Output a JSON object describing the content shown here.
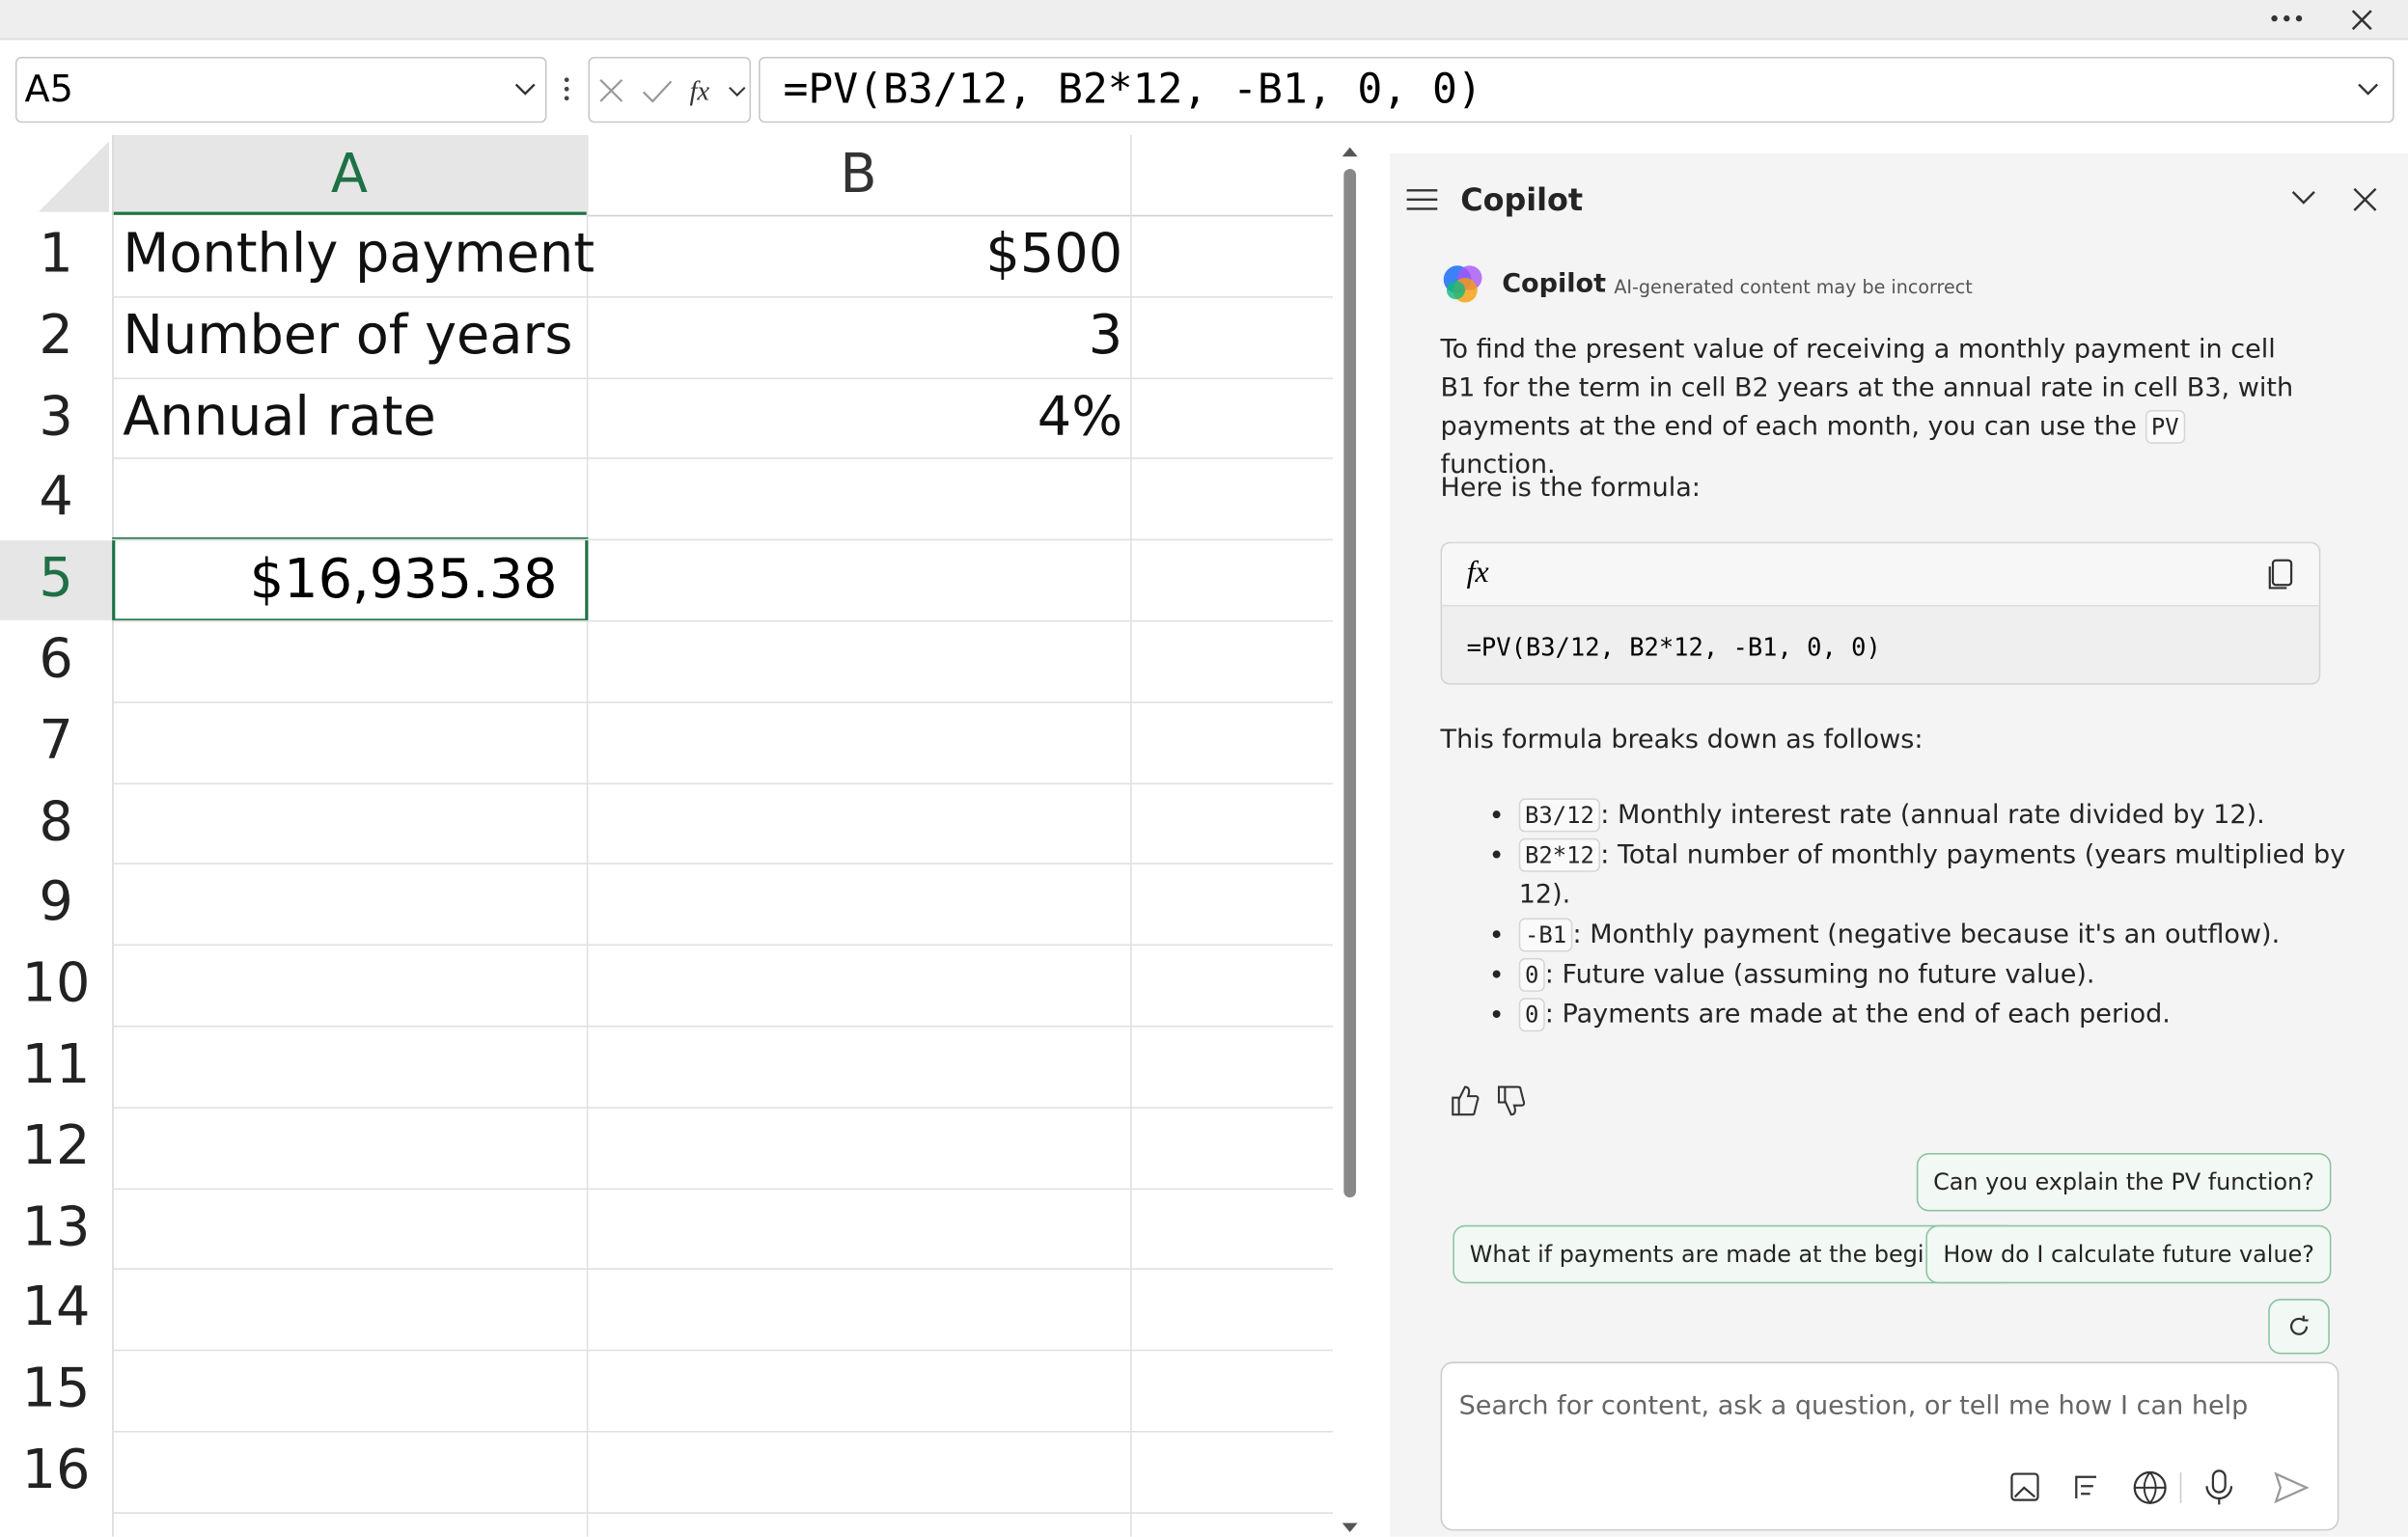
{
  "toolbar": {
    "name_box": "A5",
    "formula": "=PV(B3/12, B2*12, -B1, 0, 0)"
  },
  "sheet": {
    "columns": [
      "A",
      "B"
    ],
    "row_numbers": [
      "1",
      "2",
      "3",
      "4",
      "5",
      "6",
      "7",
      "8",
      "9",
      "10",
      "11",
      "12",
      "13",
      "14",
      "15",
      "16"
    ],
    "rows": [
      [
        "Monthly payment",
        "$500"
      ],
      [
        "Number of years",
        "3"
      ],
      [
        "Annual rate",
        "4%"
      ]
    ],
    "selected_value": "$16,935.38"
  },
  "copilot": {
    "title": "Copilot",
    "sender": "Copilot",
    "disclaimer": "AI-generated content may be incorrect",
    "intro_before": "To find the present value of receiving a monthly payment in cell B1 for the term in cell B2 years at the annual rate in cell B3, with payments at the end of each month, you can use the",
    "intro_code": "PV",
    "intro_after": "function.",
    "formula_intro": "Here is the formula:",
    "formula_icon": "fx",
    "formula": "=PV(B3/12, B2*12, -B1, 0, 0)",
    "breakdown_intro": "This formula breaks down as follows:",
    "bullets": [
      {
        "code": "B3/12",
        "text": ": Monthly interest rate (annual rate divided by 12)."
      },
      {
        "code": "B2*12",
        "text": ": Total number of monthly payments (years multiplied by 12)."
      },
      {
        "code": "-B1",
        "text": ": Monthly payment (negative because it's an outflow)."
      },
      {
        "code": "0",
        "text": ": Future value (assuming no future value)."
      },
      {
        "code": "0",
        "text": ": Payments are made at the end of each period."
      }
    ],
    "suggestions": [
      "Can you explain the PV function?",
      "What if payments are made at the beginning?",
      "How do I calculate future value?"
    ],
    "input_placeholder": "Search for content, ask a question, or tell me how I can help"
  }
}
